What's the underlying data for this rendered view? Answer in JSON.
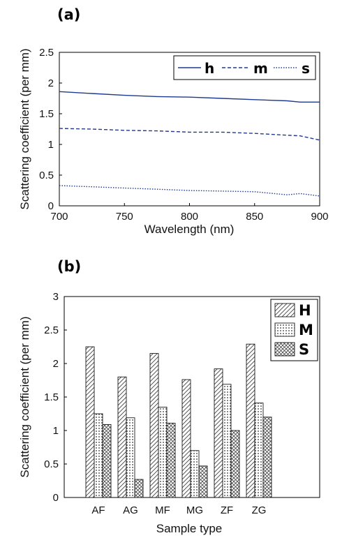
{
  "chart_data": [
    {
      "panel_label": "(a)",
      "type": "line",
      "xlabel": "Wavelength (nm)",
      "ylabel": "Scattering coefficient (per mm)",
      "xlim": [
        700,
        900
      ],
      "ylim": [
        0,
        2.5
      ],
      "x_ticks": [
        "700",
        "750",
        "800",
        "850",
        "900"
      ],
      "y_ticks": [
        "0",
        "0.5",
        "1",
        "1.5",
        "2",
        "2.5"
      ],
      "grid": false,
      "legend_position": "top-right",
      "line_color": "#1f3a8f",
      "x": [
        700,
        725,
        750,
        775,
        800,
        825,
        850,
        875,
        885,
        900
      ],
      "series": [
        {
          "name": "h",
          "style": "solid",
          "values": [
            1.86,
            1.83,
            1.8,
            1.78,
            1.77,
            1.75,
            1.73,
            1.71,
            1.69,
            1.69
          ]
        },
        {
          "name": "m",
          "style": "dashed",
          "values": [
            1.26,
            1.25,
            1.23,
            1.22,
            1.2,
            1.2,
            1.18,
            1.15,
            1.14,
            1.07
          ]
        },
        {
          "name": "s",
          "style": "dotted",
          "values": [
            0.33,
            0.31,
            0.29,
            0.27,
            0.25,
            0.24,
            0.23,
            0.18,
            0.2,
            0.16
          ]
        }
      ]
    },
    {
      "panel_label": "(b)",
      "type": "bar",
      "xlabel": "Sample type",
      "ylabel": "Scattering coefficient (per mm)",
      "ylim": [
        0,
        3
      ],
      "y_ticks": [
        "0",
        "0.5",
        "1",
        "1.5",
        "2",
        "2.5",
        "3"
      ],
      "grid": false,
      "legend_position": "top-right",
      "categories": [
        "AF",
        "AG",
        "MF",
        "MG",
        "ZF",
        "ZG"
      ],
      "series": [
        {
          "name": "H",
          "pattern": "diagonal-hatch",
          "values": [
            2.25,
            1.8,
            2.15,
            1.76,
            1.92,
            2.29
          ]
        },
        {
          "name": "M",
          "pattern": "dots",
          "values": [
            1.25,
            1.19,
            1.35,
            0.7,
            1.69,
            1.41
          ]
        },
        {
          "name": "S",
          "pattern": "crosshatch",
          "values": [
            1.09,
            0.27,
            1.11,
            0.47,
            1.0,
            1.2
          ]
        }
      ]
    }
  ]
}
